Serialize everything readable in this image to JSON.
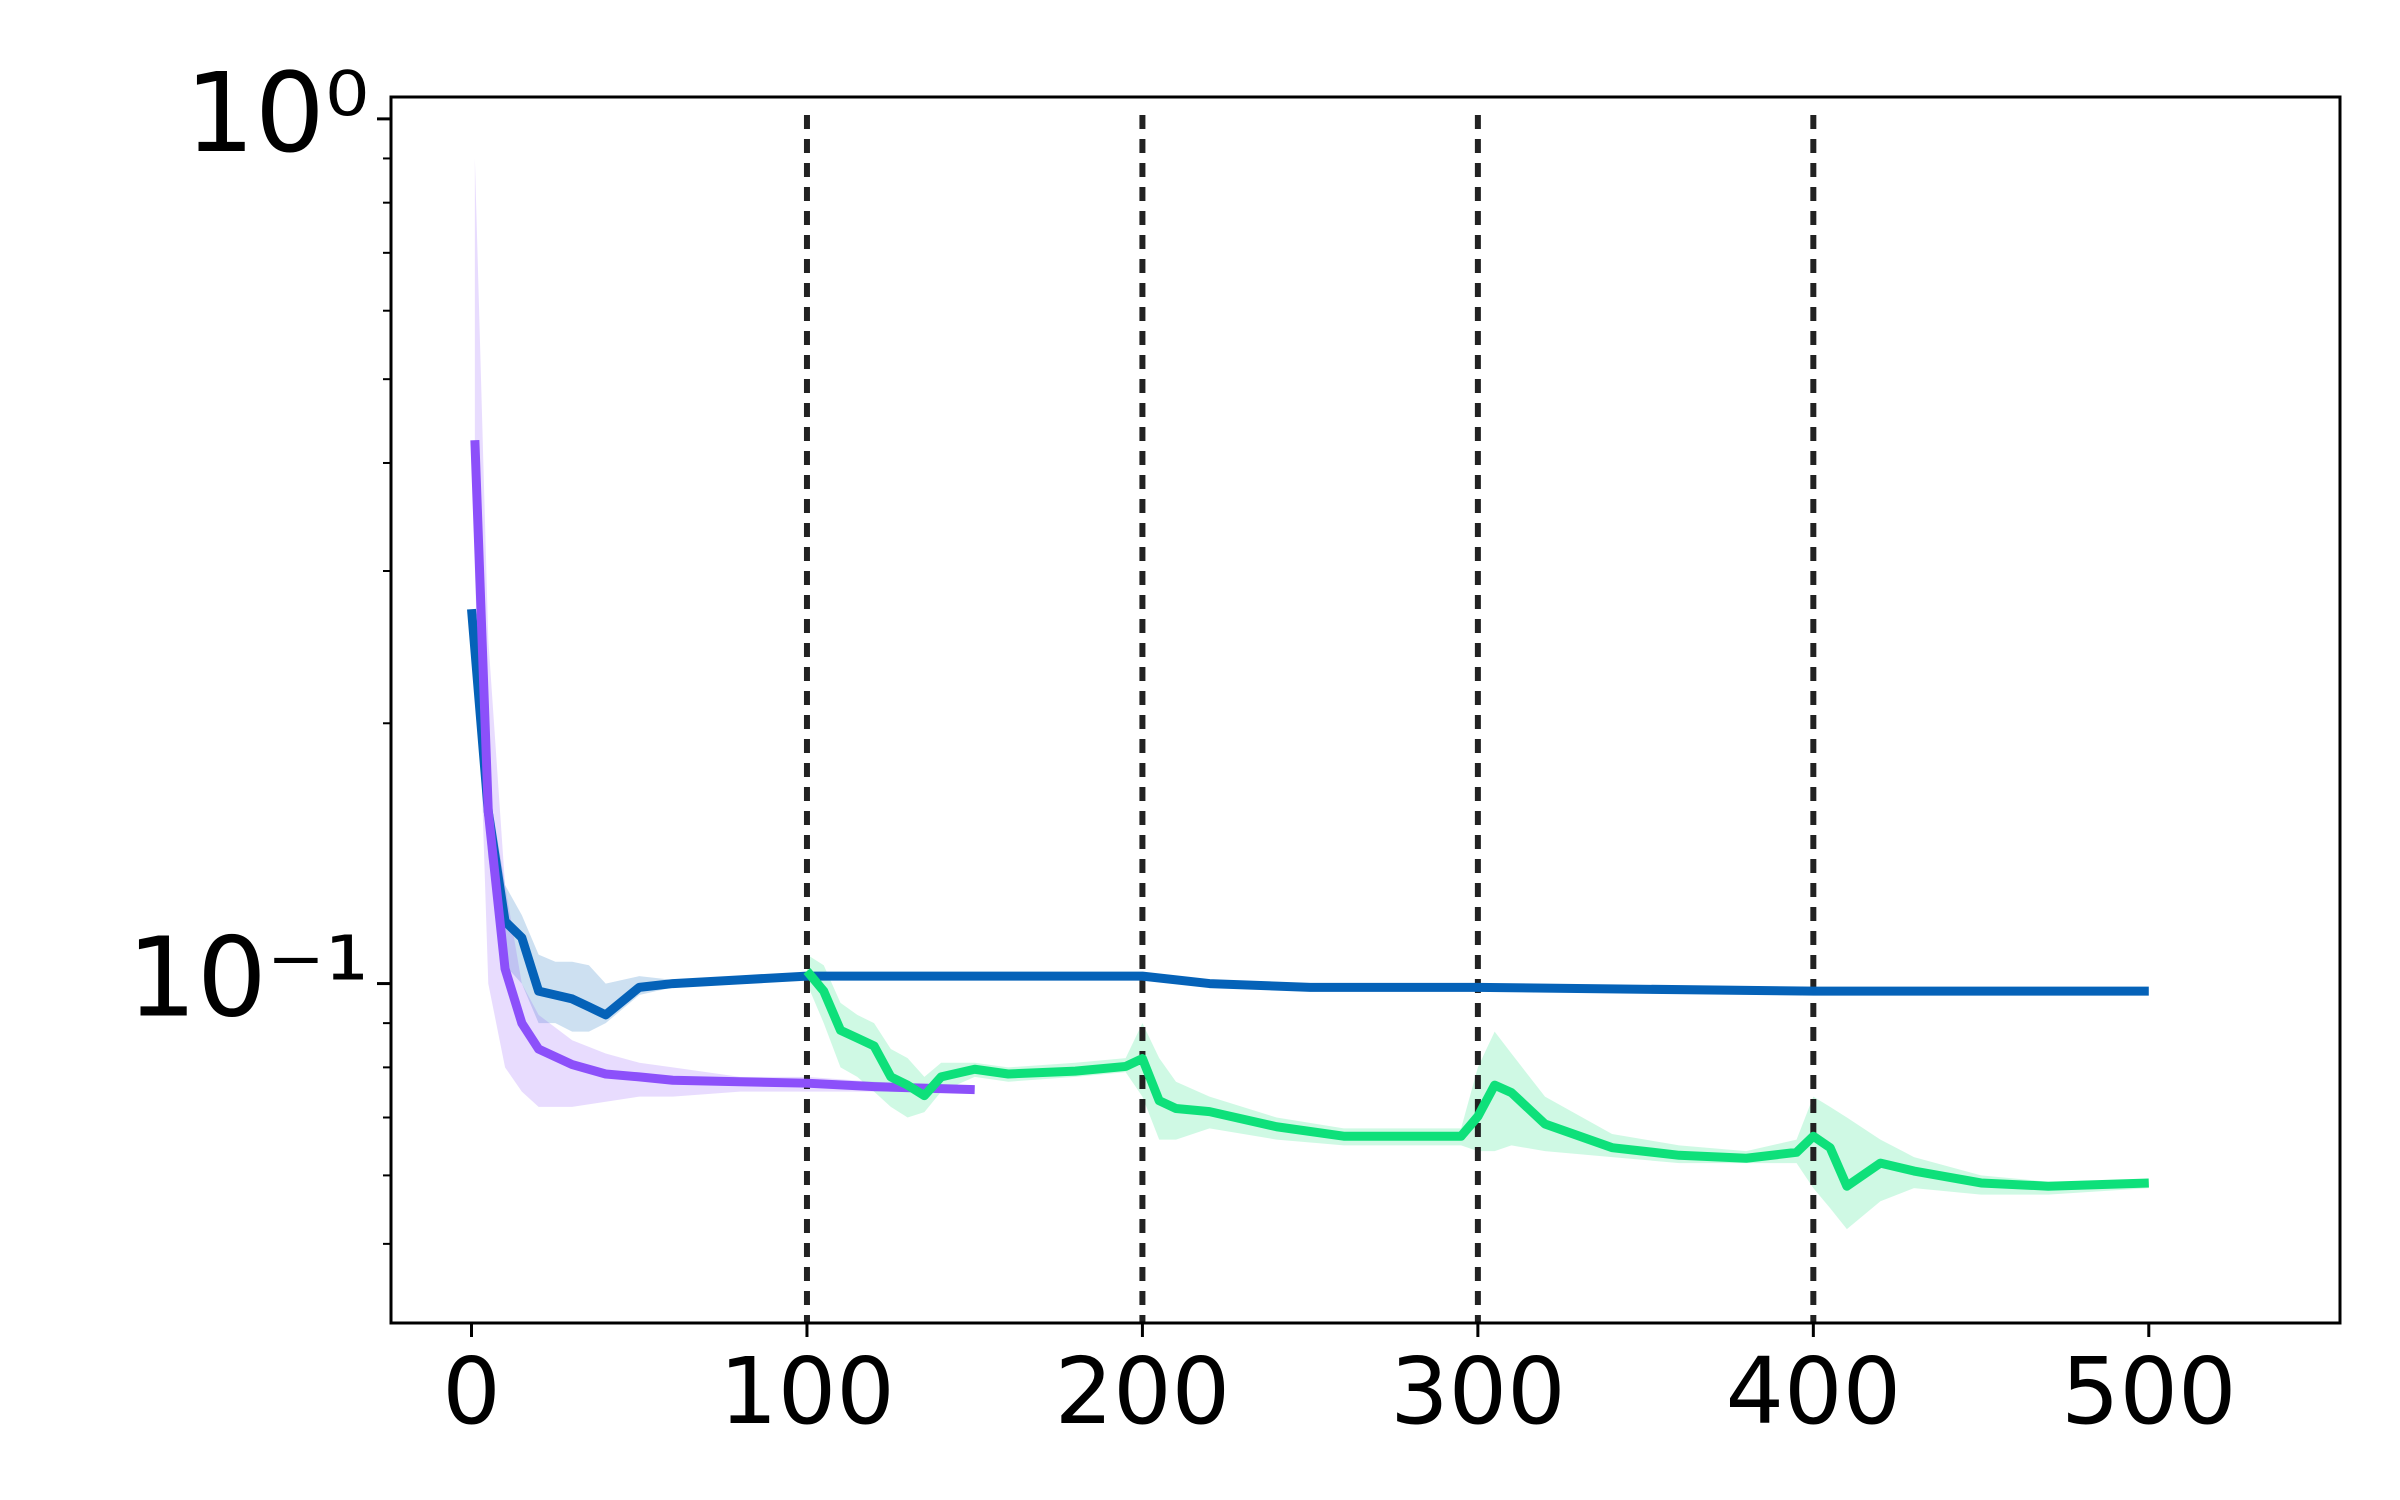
{
  "chart_data": {
    "type": "line",
    "xlim": [
      -24,
      557
    ],
    "ylim": [
      0.0405,
      1.06
    ],
    "log_y": true,
    "minor_ticks": true,
    "xticks": [
      0,
      100,
      200,
      300,
      400,
      500
    ],
    "yticks": [
      {
        "value": 1,
        "label": "10⁰"
      },
      {
        "value": 0.1,
        "label": "10⁻¹"
      }
    ],
    "vlines": [
      100,
      200,
      300,
      400
    ],
    "series": [
      {
        "color": "#0562b8",
        "x": [
          0,
          5,
          10,
          15,
          20,
          25,
          30,
          35,
          40,
          50,
          60,
          80,
          100,
          150,
          200,
          220,
          250,
          300,
          400,
          500
        ],
        "values": [
          0.271,
          0.158,
          0.118,
          0.113,
          0.098,
          0.097,
          0.096,
          0.094,
          0.092,
          0.099,
          0.1,
          0.101,
          0.102,
          0.102,
          0.102,
          0.1,
          0.099,
          0.099,
          0.098,
          0.098
        ],
        "lower": [
          0.271,
          0.14,
          0.105,
          0.1,
          0.09,
          0.09,
          0.088,
          0.088,
          0.09,
          0.097,
          0.099,
          0.1,
          0.101,
          0.102,
          0.102,
          0.1,
          0.099,
          0.099,
          0.098,
          0.098
        ],
        "upper": [
          0.271,
          0.17,
          0.13,
          0.12,
          0.108,
          0.106,
          0.106,
          0.105,
          0.1,
          0.102,
          0.101,
          0.102,
          0.103,
          0.102,
          0.102,
          0.1,
          0.099,
          0.099,
          0.098,
          0.098
        ]
      },
      {
        "color": "#8c50fa",
        "x": [
          1,
          5,
          10,
          15,
          20,
          30,
          40,
          50,
          60,
          80,
          100,
          120,
          150
        ],
        "values": [
          0.425,
          0.158,
          0.104,
          0.09,
          0.084,
          0.0806,
          0.0786,
          0.078,
          0.0773,
          0.077,
          0.0767,
          0.076,
          0.0754
        ],
        "lower": [
          0.3,
          0.1,
          0.08,
          0.075,
          0.072,
          0.072,
          0.073,
          0.074,
          0.074,
          0.075,
          0.075,
          0.075,
          0.075
        ],
        "upper": [
          0.9,
          0.25,
          0.13,
          0.1,
          0.092,
          0.086,
          0.083,
          0.081,
          0.08,
          0.078,
          0.078,
          0.077,
          0.076
        ]
      },
      {
        "color": "#0ee07a",
        "x": [
          100,
          105,
          110,
          115,
          120,
          125,
          130,
          135,
          140,
          150,
          160,
          180,
          195,
          200,
          205,
          210,
          220,
          240,
          260,
          280,
          295,
          300,
          305,
          310,
          320,
          340,
          360,
          380,
          395,
          400,
          405,
          410,
          420,
          430,
          450,
          470,
          500
        ],
        "values": [
          0.1034,
          0.098,
          0.0883,
          0.0865,
          0.0847,
          0.078,
          0.0763,
          0.0742,
          0.078,
          0.0796,
          0.0786,
          0.0792,
          0.0802,
          0.0819,
          0.0732,
          0.0717,
          0.0711,
          0.0683,
          0.0666,
          0.0666,
          0.0666,
          0.0702,
          0.0763,
          0.0748,
          0.0688,
          0.0646,
          0.0633,
          0.0628,
          0.0638,
          0.0666,
          0.0646,
          0.0583,
          0.062,
          0.0607,
          0.0588,
          0.0583,
          0.0588
        ],
        "lower": [
          0.1,
          0.09,
          0.08,
          0.078,
          0.075,
          0.072,
          0.07,
          0.071,
          0.075,
          0.078,
          0.077,
          0.078,
          0.079,
          0.074,
          0.066,
          0.066,
          0.068,
          0.066,
          0.065,
          0.065,
          0.065,
          0.064,
          0.064,
          0.065,
          0.064,
          0.063,
          0.062,
          0.062,
          0.062,
          0.058,
          0.055,
          0.052,
          0.056,
          0.058,
          0.057,
          0.057,
          0.058
        ],
        "upper": [
          0.108,
          0.105,
          0.095,
          0.092,
          0.09,
          0.084,
          0.082,
          0.078,
          0.081,
          0.081,
          0.08,
          0.081,
          0.082,
          0.09,
          0.082,
          0.077,
          0.074,
          0.07,
          0.068,
          0.068,
          0.068,
          0.08,
          0.088,
          0.083,
          0.074,
          0.067,
          0.065,
          0.064,
          0.066,
          0.074,
          0.072,
          0.07,
          0.066,
          0.063,
          0.06,
          0.059,
          0.059
        ]
      }
    ]
  }
}
